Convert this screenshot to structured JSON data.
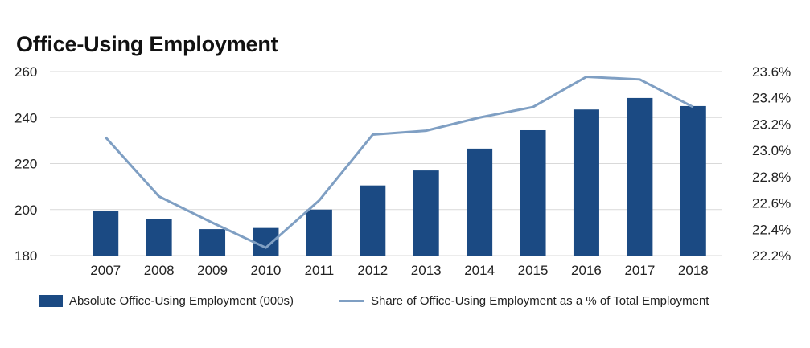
{
  "chart_data": {
    "type": "bar+line",
    "title": "Office-Using Employment",
    "categories": [
      "2007",
      "2008",
      "2009",
      "2010",
      "2011",
      "2012",
      "2013",
      "2014",
      "2015",
      "2016",
      "2017",
      "2018"
    ],
    "series": [
      {
        "name": "Absolute Office-Using Employment (000s)",
        "type": "bar",
        "axis": "left",
        "values": [
          199.5,
          196,
          191.5,
          192,
          200,
          210.5,
          217,
          226.5,
          234.5,
          243.5,
          248.5,
          245
        ]
      },
      {
        "name": "Share of Office-Using Employment as a % of Total Employment",
        "type": "line",
        "axis": "right",
        "values": [
          23.1,
          22.65,
          22.45,
          22.26,
          22.62,
          23.12,
          23.15,
          23.25,
          23.33,
          23.56,
          23.54,
          23.33
        ]
      }
    ],
    "y_left": {
      "min": 180,
      "max": 260,
      "ticks": [
        "180",
        "200",
        "220",
        "240",
        "260"
      ]
    },
    "y_right": {
      "min": 22.2,
      "max": 23.6,
      "ticks": [
        "22.2%",
        "22.4%",
        "22.6%",
        "22.8%",
        "23.0%",
        "23.2%",
        "23.4%",
        "23.6%"
      ]
    },
    "grid": true,
    "legend_position": "bottom",
    "colors": {
      "bar": "#1b4a83",
      "line": "#7f9fc3",
      "grid": "#d9d9d9"
    }
  }
}
